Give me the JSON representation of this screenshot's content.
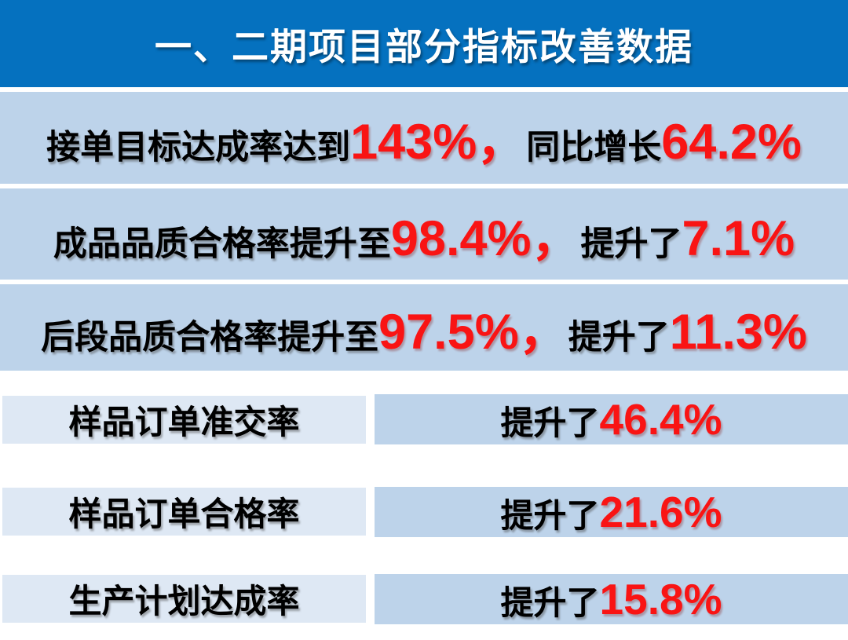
{
  "header": {
    "title": "一、二期项目部分指标改善数据"
  },
  "metric_rows": [
    {
      "text_1": "接单目标达成率达到",
      "value_1": "143%，",
      "text_2": "同比增长",
      "value_2": "64.2%"
    },
    {
      "text_1": "成品品质合格率提升至",
      "value_1": "98.4%，",
      "text_2": "提升了",
      "value_2": "7.1%"
    },
    {
      "text_1": "后段品质合格率提升至",
      "value_1": "97.5%，",
      "text_2": "提升了",
      "value_2": "11.3%"
    }
  ],
  "split_rows": [
    {
      "label": "样品订单准交率",
      "value_prefix": "提升了",
      "value": "46.4%"
    },
    {
      "label": "样品订单合格率",
      "value_prefix": "提升了",
      "value": "21.6%"
    },
    {
      "label": "生产计划达成率",
      "value_prefix": "提升了",
      "value": "15.8%"
    }
  ],
  "colors": {
    "header_blue": "#0571BF",
    "row_blue": "#BDD3EA",
    "label_cell_blue": "#DEE8F4",
    "highlight_red": "#F91414",
    "text_black": "#000000",
    "title_white": "#FFFFFF",
    "divider_white": "#FFFFFF"
  }
}
